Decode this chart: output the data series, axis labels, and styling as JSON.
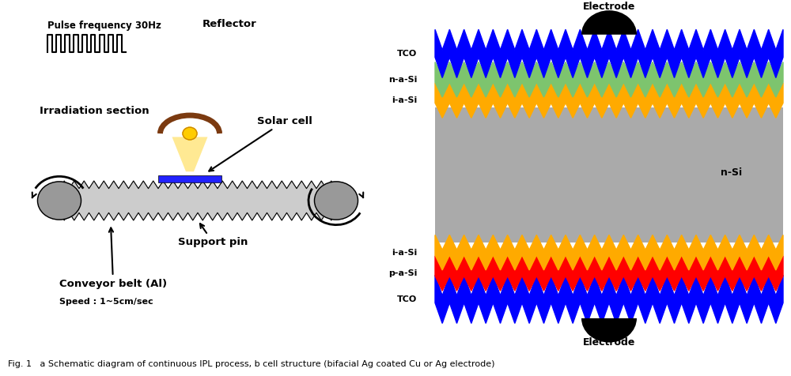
{
  "bg_color": "#ffffff",
  "fig_caption": "Fig. 1   a Schematic diagram of continuous IPL process, b cell structure (bifacial Ag coated Cu or Ag electrode)",
  "left_labels": {
    "pulse_freq": "Pulse frequency 30Hz",
    "irradiation": "Irradiation section",
    "reflector": "Reflector",
    "solar_cell": "Solar cell",
    "support_pin": "Support pin",
    "conveyor": "Conveyor belt (Al)",
    "speed": "Speed : 1~5cm/sec"
  },
  "right_labels": {
    "top_electrode": "Electrode",
    "bottom_electrode": "Electrode",
    "tco_top": "TCO",
    "n_a_si": "n-a-Si",
    "i_a_si_top": "i-a-Si",
    "n_si": "n-Si",
    "i_a_si_bot": "i-a-Si",
    "p_a_si": "p-a-Si",
    "tco_bot": "TCO"
  },
  "colors": {
    "blue": "#0000ff",
    "green": "#7dc46e",
    "orange": "#ffaa00",
    "gray": "#aaaaaa",
    "red": "#ff0000",
    "black": "#000000",
    "brown": "#7b3a10",
    "yellow_light": "#ffe680",
    "solar_blue": "#2222ff",
    "belt_gray": "#aaaaaa",
    "roller_gray": "#999999"
  }
}
